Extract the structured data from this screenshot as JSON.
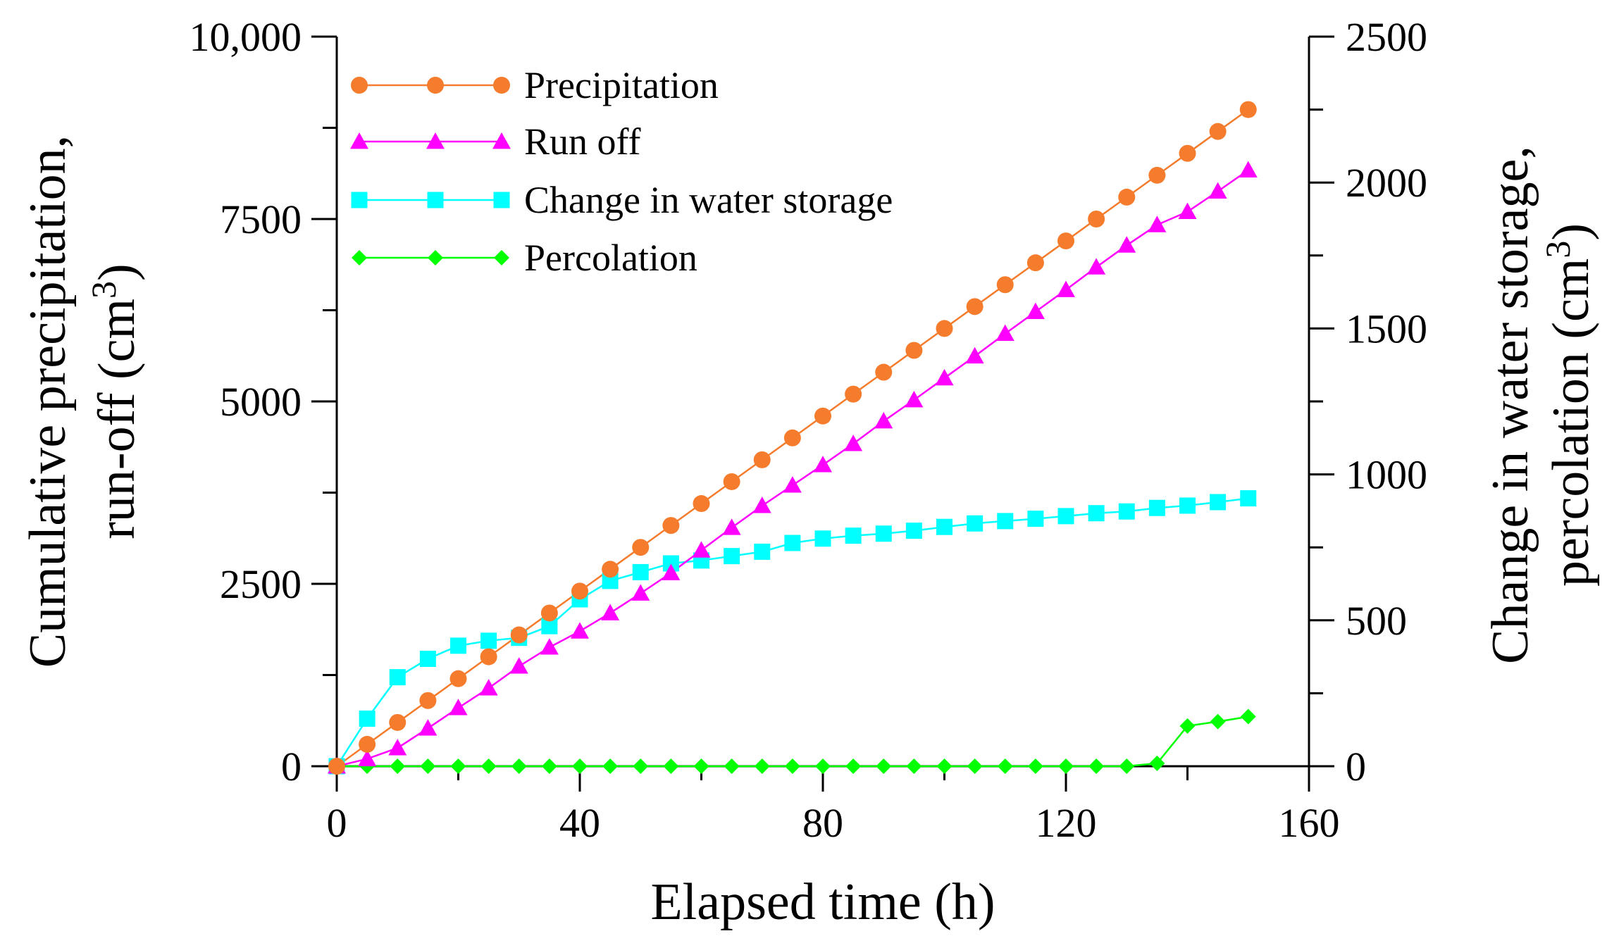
{
  "chart_data": {
    "type": "line",
    "title": "",
    "xlabel": "Elapsed time (h)",
    "ylabel_left_line1": "Cumulative precipitation,",
    "ylabel_left_line2": "run-off (cm",
    "ylabel_right_line1": "Change in water storage,",
    "ylabel_right_line2": "percolation (cm",
    "unit_superscript": "3",
    "unit_close": ")",
    "xlim": [
      0,
      160
    ],
    "ylim_left": [
      0,
      10000
    ],
    "ylim_right": [
      0,
      2500
    ],
    "x_ticks": [
      0,
      40,
      80,
      120,
      160
    ],
    "x_tick_labels": [
      "0",
      "40",
      "80",
      "120",
      "160"
    ],
    "y_left_ticks": [
      0,
      2500,
      5000,
      7500,
      10000
    ],
    "y_left_tick_labels": [
      "0",
      "2500",
      "5000",
      "7500",
      "10,000"
    ],
    "y_right_ticks": [
      0,
      500,
      1000,
      1500,
      2000,
      2500
    ],
    "y_right_tick_labels": [
      "0",
      "500",
      "1000",
      "1500",
      "2000",
      "2500"
    ],
    "grid": false,
    "legend_position": "top-left",
    "series": [
      {
        "name": "Precipitation",
        "axis": "left",
        "color": "#F47C2C",
        "marker": "circle",
        "x": [
          0,
          5,
          10,
          15,
          20,
          25,
          30,
          35,
          40,
          45,
          50,
          55,
          60,
          65,
          70,
          75,
          80,
          85,
          90,
          95,
          100,
          105,
          110,
          115,
          120,
          125,
          130,
          135,
          140,
          145,
          150
        ],
        "values": [
          0,
          300,
          600,
          900,
          1200,
          1500,
          1800,
          2100,
          2400,
          2700,
          3000,
          3300,
          3600,
          3900,
          4200,
          4500,
          4800,
          5100,
          5400,
          5700,
          6000,
          6300,
          6600,
          6900,
          7200,
          7500,
          7800,
          8100,
          8400,
          8700,
          9000
        ]
      },
      {
        "name": "Run off",
        "axis": "left",
        "color": "#FF00FF",
        "marker": "triangle",
        "x": [
          0,
          5,
          10,
          15,
          20,
          25,
          30,
          35,
          40,
          45,
          50,
          55,
          60,
          65,
          70,
          75,
          80,
          85,
          90,
          95,
          100,
          105,
          110,
          115,
          120,
          125,
          130,
          135,
          140,
          145,
          150
        ],
        "values": [
          0,
          100,
          250,
          520,
          800,
          1070,
          1370,
          1630,
          1850,
          2100,
          2370,
          2650,
          2960,
          3270,
          3570,
          3850,
          4130,
          4420,
          4730,
          5020,
          5320,
          5620,
          5930,
          6230,
          6530,
          6840,
          7140,
          7420,
          7600,
          7880,
          8170
        ]
      },
      {
        "name": "Change in water storage",
        "axis": "right",
        "color": "#00FFFF",
        "marker": "square",
        "x": [
          0,
          5,
          10,
          15,
          20,
          25,
          30,
          35,
          40,
          45,
          50,
          55,
          60,
          65,
          70,
          75,
          80,
          85,
          90,
          95,
          100,
          105,
          110,
          115,
          120,
          125,
          130,
          135,
          140,
          145,
          150
        ],
        "values": [
          0,
          163,
          305,
          368,
          413,
          430,
          440,
          480,
          572,
          635,
          665,
          695,
          705,
          720,
          735,
          765,
          780,
          790,
          797,
          807,
          820,
          832,
          840,
          848,
          857,
          867,
          873,
          885,
          893,
          905,
          918
        ]
      },
      {
        "name": "Percolation",
        "axis": "right",
        "color": "#00FF00",
        "marker": "diamond",
        "x": [
          0,
          5,
          10,
          15,
          20,
          25,
          30,
          35,
          40,
          45,
          50,
          55,
          60,
          65,
          70,
          75,
          80,
          85,
          90,
          95,
          100,
          105,
          110,
          115,
          120,
          125,
          130,
          135,
          140,
          145,
          150
        ],
        "values": [
          0,
          0,
          0,
          0,
          0,
          0,
          0,
          0,
          0,
          0,
          0,
          0,
          0,
          0,
          0,
          0,
          0,
          0,
          0,
          0,
          0,
          0,
          0,
          0,
          0,
          0,
          0,
          10,
          138,
          153,
          170
        ]
      }
    ]
  }
}
